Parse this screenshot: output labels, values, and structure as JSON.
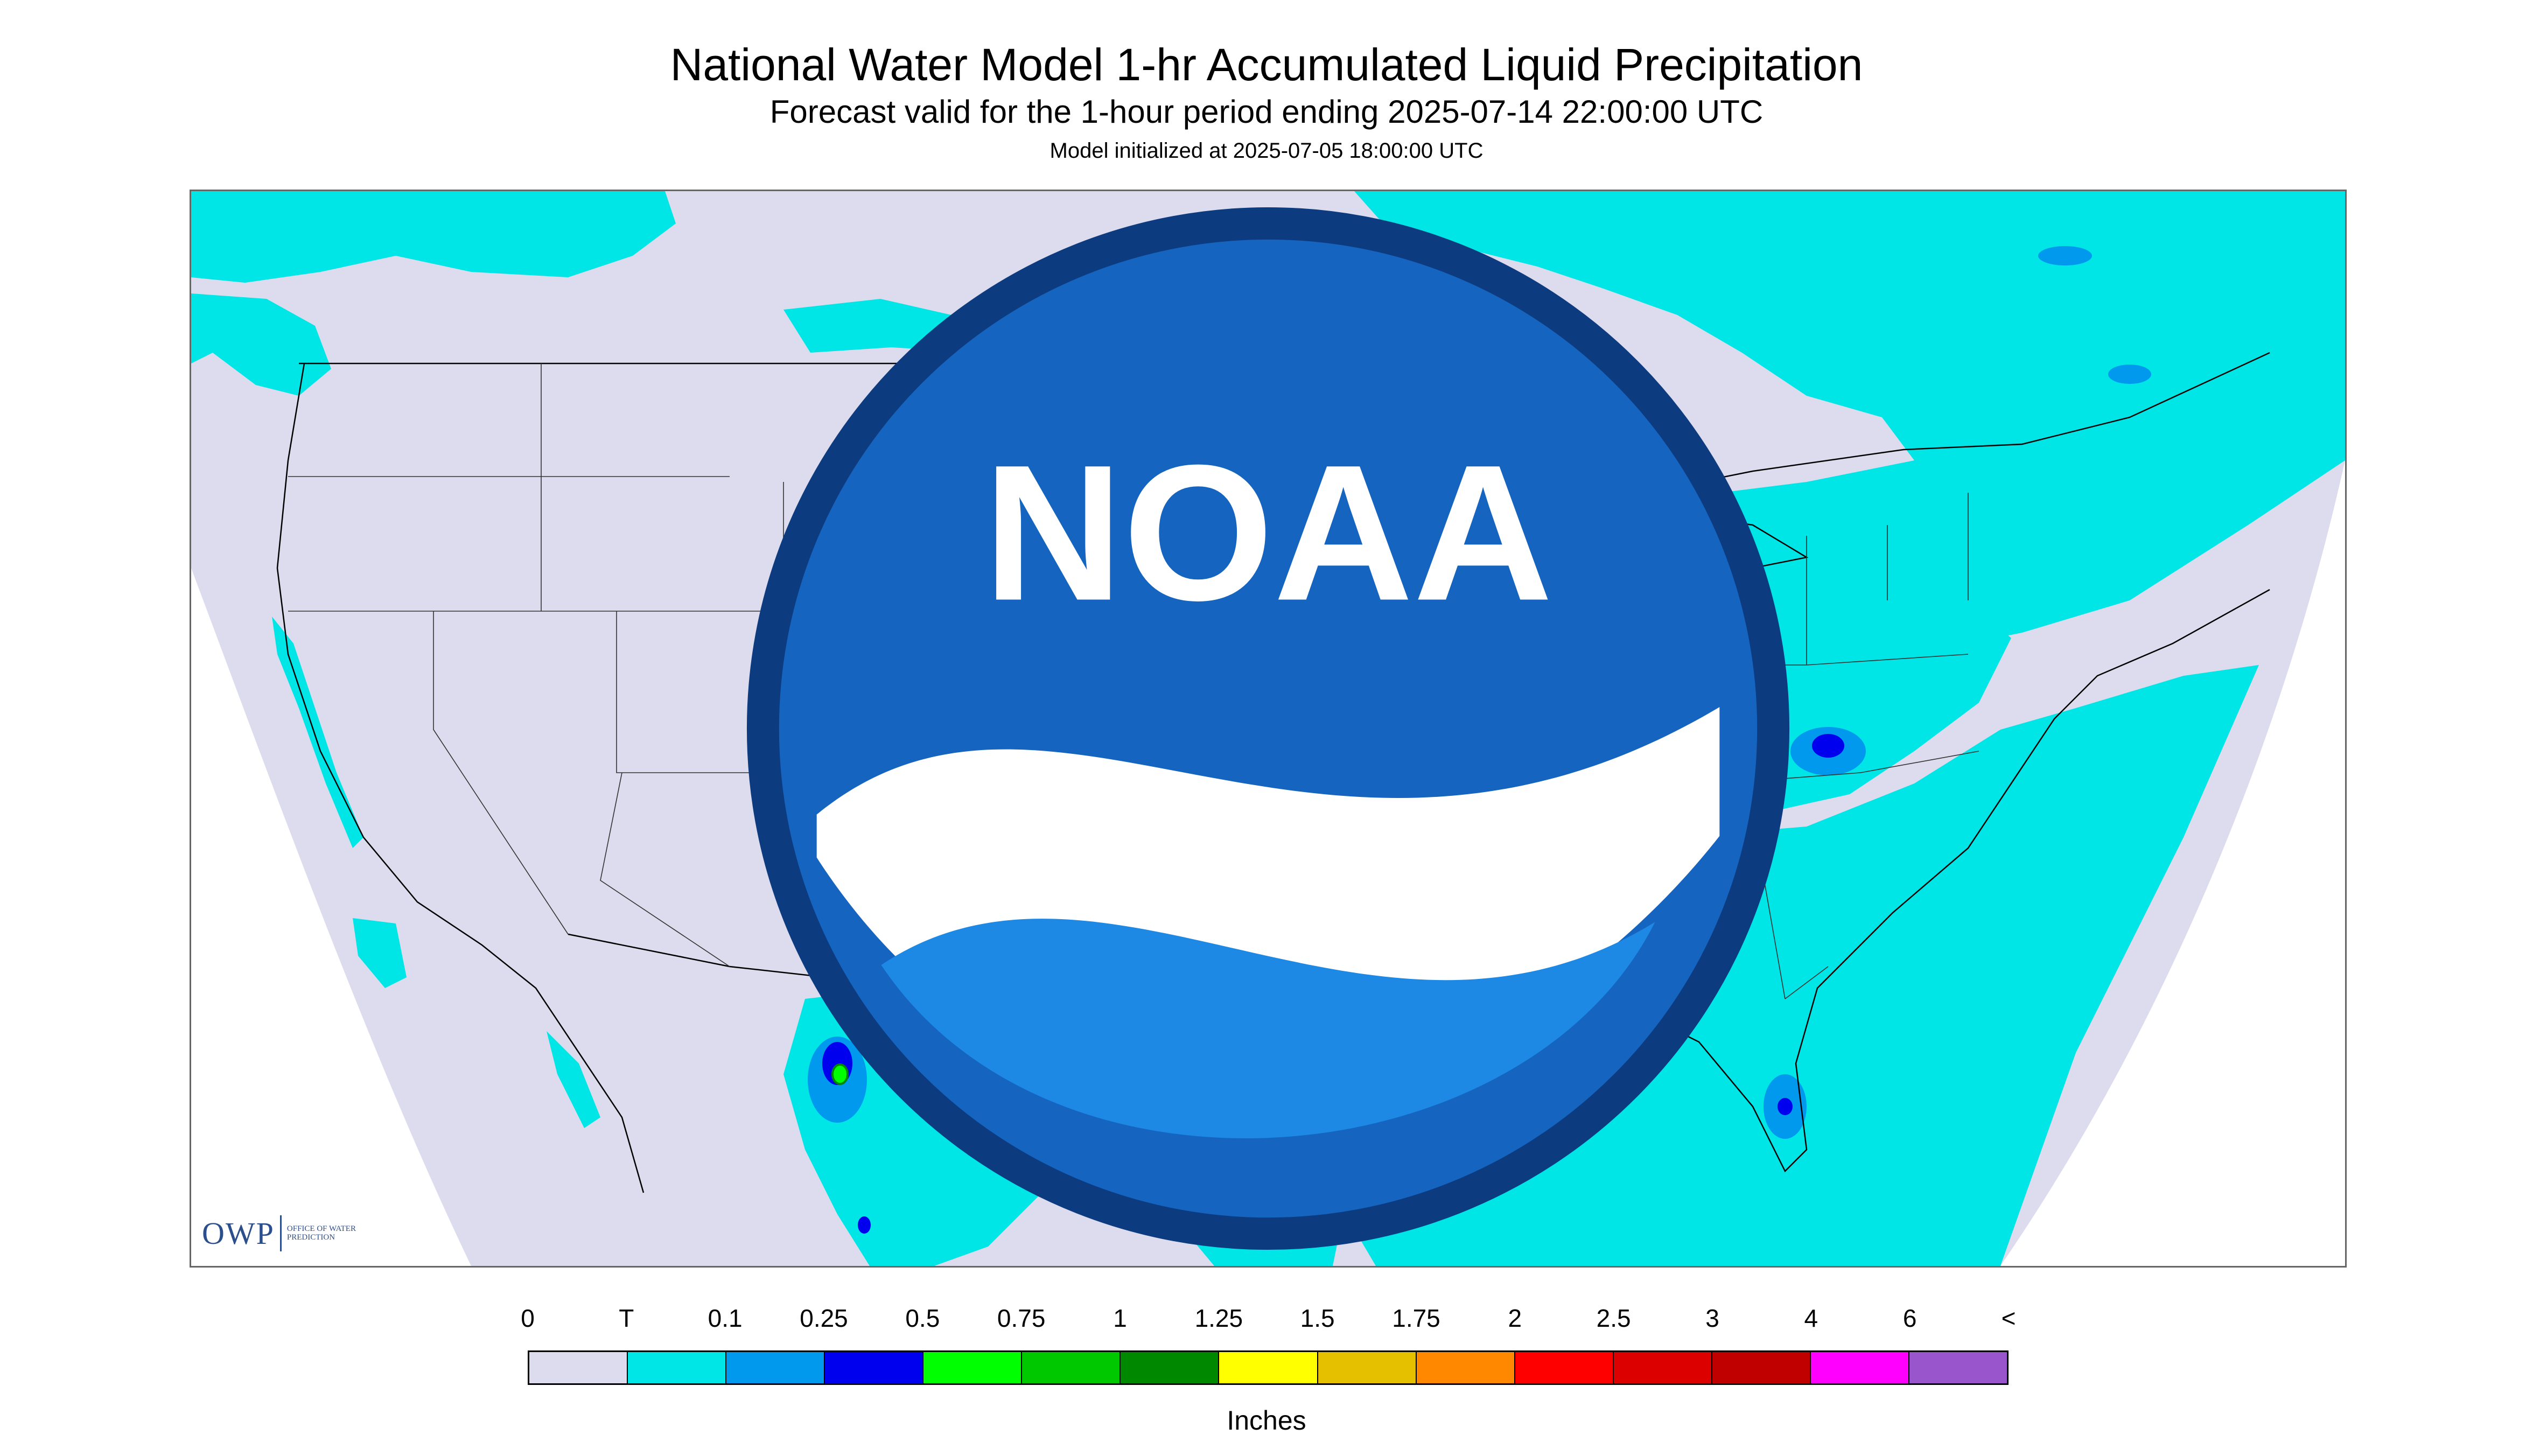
{
  "header": {
    "title": "National Water Model 1-hr Accumulated Liquid Precipitation",
    "subtitle": "Forecast valid for the 1-hour period ending 2025-07-14 22:00:00 UTC",
    "init": "Model initialized at 2025-07-05 18:00:00 UTC"
  },
  "logos": {
    "owp_mark": "OWP",
    "owp_text": "Office of Water Prediction",
    "noaa_text": "NOAA"
  },
  "legend": {
    "labels": [
      "0",
      "T",
      "0.1",
      "0.25",
      "0.5",
      "0.75",
      "1",
      "1.25",
      "1.5",
      "1.75",
      "2",
      "2.5",
      "3",
      "4",
      "6",
      "<"
    ],
    "colors": [
      "#dcdcee",
      "#00e5e5",
      "#0099ee",
      "#0000ee",
      "#00ff00",
      "#00c800",
      "#008800",
      "#ffff00",
      "#e5c000",
      "#ff8800",
      "#ff0000",
      "#dd0000",
      "#c00000",
      "#ff00ff",
      "#9955cc"
    ],
    "units": "Inches"
  },
  "colors": {
    "no_precip": "#dcdcee",
    "trace": "#00e5e5",
    "light": "#0099ee",
    "moderate": "#0000ee",
    "heavy": "#00ff00",
    "borders": "#000000"
  }
}
